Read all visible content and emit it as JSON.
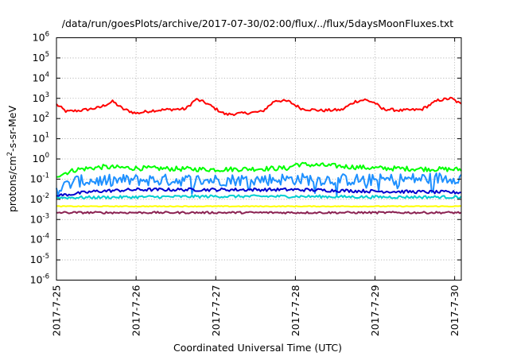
{
  "chart_data": {
    "type": "line",
    "title": "/data/run/goesPlots/archive/2017-07-30/02:00/flux/../flux/5daysMoonFluxes.txt",
    "xlabel": "Coordinated Universal Time (UTC)",
    "ylabel": {
      "pre": "protons/cm",
      "sup": "2",
      "post": "-s-sr-MeV"
    },
    "yscale": "log",
    "ylim": [
      1e-06,
      1000000.0
    ],
    "xlim": [
      "2017-07-25 00:00",
      "2017-07-30 02:00"
    ],
    "grid": true,
    "x_ticks": [
      "2017-7-25",
      "2017-7-26",
      "2017-7-27",
      "2017-7-28",
      "2017-7-29",
      "2017-7-30"
    ],
    "y_ticks": [
      {
        "base": "10",
        "exp": "-6"
      },
      {
        "base": "10",
        "exp": "-5"
      },
      {
        "base": "10",
        "exp": "-4"
      },
      {
        "base": "10",
        "exp": "-3"
      },
      {
        "base": "10",
        "exp": "-2"
      },
      {
        "base": "10",
        "exp": "-1"
      },
      {
        "base": "10",
        "exp": "0"
      },
      {
        "base": "10",
        "exp": "1"
      },
      {
        "base": "10",
        "exp": "2"
      },
      {
        "base": "10",
        "exp": "3"
      },
      {
        "base": "10",
        "exp": "4"
      },
      {
        "base": "10",
        "exp": "5"
      },
      {
        "base": "10",
        "exp": "6"
      }
    ],
    "series": [
      {
        "color": "#ff0000",
        "anchors": [
          [
            "2017-07-25 00:00",
            500
          ],
          [
            "2017-07-25 03:00",
            220
          ],
          [
            "2017-07-25 08:00",
            260
          ],
          [
            "2017-07-25 13:00",
            350
          ],
          [
            "2017-07-25 17:00",
            700
          ],
          [
            "2017-07-25 20:00",
            300
          ],
          [
            "2017-07-26 00:00",
            180
          ],
          [
            "2017-07-26 05:00",
            250
          ],
          [
            "2017-07-26 10:00",
            280
          ],
          [
            "2017-07-26 15:00",
            300
          ],
          [
            "2017-07-26 18:00",
            900
          ],
          [
            "2017-07-26 21:00",
            600
          ],
          [
            "2017-07-27 00:00",
            300
          ],
          [
            "2017-07-27 03:00",
            160
          ],
          [
            "2017-07-27 08:00",
            180
          ],
          [
            "2017-07-27 14:00",
            220
          ],
          [
            "2017-07-27 18:00",
            800
          ],
          [
            "2017-07-27 22:00",
            700
          ],
          [
            "2017-07-28 02:00",
            300
          ],
          [
            "2017-07-28 08:00",
            250
          ],
          [
            "2017-07-28 14:00",
            270
          ],
          [
            "2017-07-28 18:00",
            700
          ],
          [
            "2017-07-28 21:00",
            850
          ],
          [
            "2017-07-29 00:00",
            600
          ],
          [
            "2017-07-29 02:00",
            300
          ],
          [
            "2017-07-29 08:00",
            250
          ],
          [
            "2017-07-29 14:00",
            280
          ],
          [
            "2017-07-29 19:00",
            800
          ],
          [
            "2017-07-29 23:00",
            1000
          ],
          [
            "2017-07-30 02:00",
            500
          ]
        ],
        "amp": 0.07,
        "dip": false
      },
      {
        "color": "#00ff00",
        "anchors": [
          [
            "2017-07-25 00:00",
            0.15
          ],
          [
            "2017-07-25 06:00",
            0.3
          ],
          [
            "2017-07-25 14:00",
            0.4
          ],
          [
            "2017-07-26 00:00",
            0.35
          ],
          [
            "2017-07-27 00:00",
            0.3
          ],
          [
            "2017-07-27 22:00",
            0.35
          ],
          [
            "2017-07-28 00:00",
            0.55
          ],
          [
            "2017-07-28 12:00",
            0.45
          ],
          [
            "2017-07-29 00:00",
            0.35
          ],
          [
            "2017-07-30 02:00",
            0.3
          ]
        ],
        "amp": 0.12,
        "dip": false
      },
      {
        "color": "#1e90ff",
        "anchors": [
          [
            "2017-07-25 00:00",
            0.03
          ],
          [
            "2017-07-25 06:00",
            0.08
          ],
          [
            "2017-07-26 00:00",
            0.09
          ],
          [
            "2017-07-27 00:00",
            0.09
          ],
          [
            "2017-07-28 00:00",
            0.1
          ],
          [
            "2017-07-29 00:00",
            0.09
          ],
          [
            "2017-07-30 02:00",
            0.12
          ]
        ],
        "amp": 0.3,
        "dip": true
      },
      {
        "color": "#0000cd",
        "anchors": [
          [
            "2017-07-25 00:00",
            0.015
          ],
          [
            "2017-07-25 12:00",
            0.025
          ],
          [
            "2017-07-26 00:00",
            0.03
          ],
          [
            "2017-07-27 00:00",
            0.03
          ],
          [
            "2017-07-28 00:00",
            0.03
          ],
          [
            "2017-07-29 00:00",
            0.025
          ],
          [
            "2017-07-30 02:00",
            0.022
          ]
        ],
        "amp": 0.08,
        "dip": false
      },
      {
        "color": "#00ced1",
        "anchors": [
          [
            "2017-07-25 00:00",
            0.012
          ],
          [
            "2017-07-26 00:00",
            0.013
          ],
          [
            "2017-07-27 00:00",
            0.014
          ],
          [
            "2017-07-28 00:00",
            0.014
          ],
          [
            "2017-07-29 00:00",
            0.013
          ],
          [
            "2017-07-30 02:00",
            0.013
          ]
        ],
        "amp": 0.07,
        "dip": false
      },
      {
        "color": "#ffff00",
        "anchors": [
          [
            "2017-07-25 00:00",
            0.0045
          ],
          [
            "2017-07-30 02:00",
            0.0045
          ]
        ],
        "amp": 0.02,
        "dip": false
      },
      {
        "color": "#8b2252",
        "anchors": [
          [
            "2017-07-25 00:00",
            0.0022
          ],
          [
            "2017-07-30 02:00",
            0.0022
          ]
        ],
        "amp": 0.05,
        "dip": false
      }
    ]
  }
}
